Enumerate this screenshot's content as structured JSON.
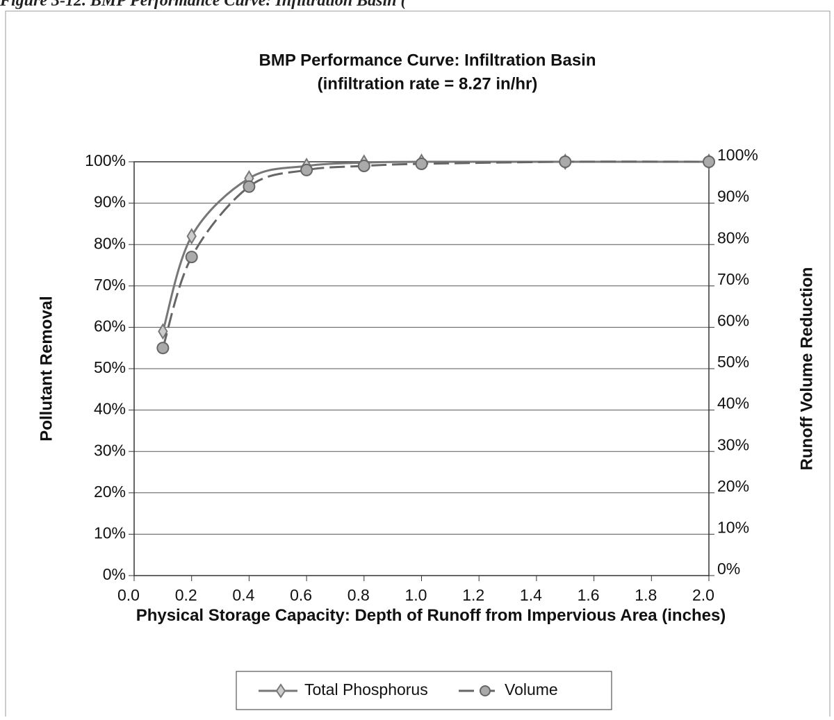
{
  "caption": "Figure 3-12. BMP Performance Curve: Infiltration Basin (",
  "chart_data": {
    "type": "line",
    "title": "BMP Performance Curve: Infiltration Basin",
    "subtitle": "(infiltration rate = 8.27 in/hr)",
    "xlabel": "Physical Storage Capacity: Depth of Runoff from Impervious Area (inches)",
    "ylabel": "Pollutant Removal",
    "y2label": "Runoff Volume Reduction",
    "x": [
      0.1,
      0.2,
      0.4,
      0.6,
      0.8,
      1.0,
      1.5,
      2.0
    ],
    "series": [
      {
        "name": "Total Phosphorus",
        "color": "#777777",
        "values": [
          59,
          82,
          96,
          99,
          99.8,
          100,
          100,
          100
        ]
      },
      {
        "name": "Volume",
        "color": "#666666",
        "axis": "y2",
        "values": [
          55,
          77,
          94,
          98,
          99,
          99.5,
          100,
          100
        ]
      }
    ],
    "xlim": [
      0,
      2
    ],
    "xticks": [
      {
        "value": 0,
        "label": "0.0"
      },
      0.2,
      0.4,
      0.6,
      0.8,
      {
        "value": 1,
        "label": "1.0"
      },
      1.2,
      1.4,
      1.6,
      1.8,
      {
        "value": 2,
        "label": "2.0"
      }
    ],
    "ylim": [
      0,
      100
    ],
    "yticks": [
      {
        "value": 0,
        "label": "0%"
      },
      {
        "value": 10,
        "label": "10%"
      },
      {
        "value": 20,
        "label": "20%"
      },
      {
        "value": 30,
        "label": "30%"
      },
      {
        "value": 40,
        "label": "40%"
      },
      {
        "value": 50,
        "label": "50%"
      },
      {
        "value": 60,
        "label": "60%"
      },
      {
        "value": 70,
        "label": "70%"
      },
      {
        "value": 80,
        "label": "80%"
      },
      {
        "value": 90,
        "label": "90%"
      },
      {
        "value": 100,
        "label": "100%"
      }
    ],
    "y2lim": [
      0,
      100
    ],
    "y2ticks": [
      {
        "value": 0,
        "label": "0%"
      },
      {
        "value": 10,
        "label": "10%"
      },
      {
        "value": 20,
        "label": "20%"
      },
      {
        "value": 30,
        "label": "30%"
      },
      {
        "value": 40,
        "label": "40%"
      },
      {
        "value": 50,
        "label": "50%"
      },
      {
        "value": 60,
        "label": "60%"
      },
      {
        "value": 70,
        "label": "70%"
      },
      {
        "value": 80,
        "label": "80%"
      },
      {
        "value": 90,
        "label": "90%"
      },
      {
        "value": 100,
        "label": "100%"
      }
    ],
    "grid": true,
    "legend": "bottom"
  }
}
